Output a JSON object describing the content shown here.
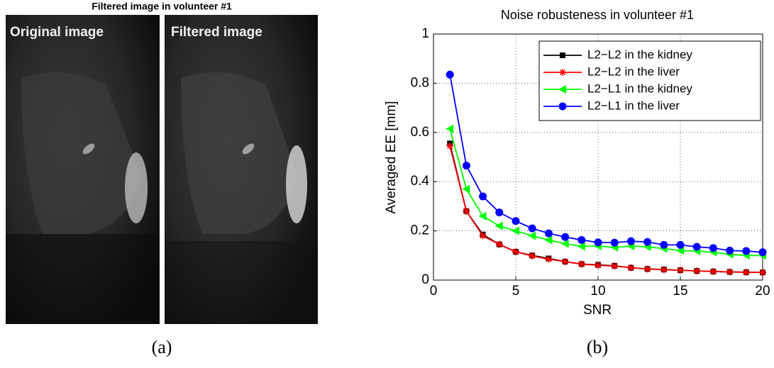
{
  "figure": {
    "title": "Filtered image in volunteer #1",
    "left_label": "Original image",
    "right_label": "Filtered image",
    "caption_a": "(a)",
    "caption_b": "(b)"
  },
  "chart_data": {
    "type": "line",
    "title": "Noise robusteness in volunteer #1",
    "xlabel": "SNR",
    "ylabel": "Averaged EE [mm]",
    "x": [
      1,
      2,
      3,
      4,
      5,
      6,
      7,
      8,
      9,
      10,
      11,
      12,
      13,
      14,
      15,
      16,
      17,
      18,
      19,
      20
    ],
    "xlim": [
      0,
      20
    ],
    "xticks": [
      0,
      5,
      10,
      15,
      20
    ],
    "ylim": [
      0,
      1
    ],
    "yticks": [
      0,
      0.2,
      0.4,
      0.6,
      0.8,
      1
    ],
    "grid": true,
    "legend": "upper right",
    "series": [
      {
        "name": "L2−L2 in the kidney",
        "color": "#000000",
        "marker": "square",
        "values": [
          0.555,
          0.28,
          0.185,
          0.145,
          0.115,
          0.1,
          0.088,
          0.075,
          0.065,
          0.062,
          0.058,
          0.05,
          0.045,
          0.043,
          0.04,
          0.037,
          0.035,
          0.033,
          0.032,
          0.031
        ]
      },
      {
        "name": "L2−L2 in the liver",
        "color": "#ff0000",
        "marker": "star",
        "values": [
          0.545,
          0.28,
          0.18,
          0.145,
          0.115,
          0.098,
          0.085,
          0.075,
          0.065,
          0.06,
          0.057,
          0.05,
          0.045,
          0.042,
          0.04,
          0.037,
          0.035,
          0.033,
          0.032,
          0.031
        ]
      },
      {
        "name": "L2−L1 in the kidney",
        "color": "#00ff00",
        "marker": "triangle-left",
        "values": [
          0.615,
          0.37,
          0.26,
          0.22,
          0.2,
          0.18,
          0.163,
          0.148,
          0.137,
          0.138,
          0.133,
          0.138,
          0.135,
          0.128,
          0.12,
          0.118,
          0.113,
          0.105,
          0.1,
          0.1
        ]
      },
      {
        "name": "L2−L1 in the liver",
        "color": "#0000ff",
        "marker": "circle",
        "values": [
          0.835,
          0.465,
          0.34,
          0.275,
          0.24,
          0.21,
          0.19,
          0.175,
          0.163,
          0.153,
          0.152,
          0.158,
          0.155,
          0.143,
          0.143,
          0.135,
          0.13,
          0.12,
          0.118,
          0.113
        ]
      }
    ]
  }
}
